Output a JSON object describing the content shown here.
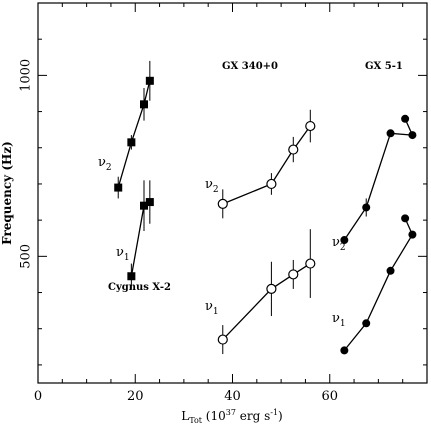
{
  "chart_data": {
    "type": "scatter",
    "title": "",
    "xlabel": {
      "main": "L",
      "sub": "Tot",
      "rest": " (10",
      "sup": "37",
      "rest2": " erg s",
      "sup2": "-1",
      "end": ")"
    },
    "ylabel": "Frequency (Hz)",
    "xlim": [
      0,
      80
    ],
    "ylim": [
      150,
      1200
    ],
    "xticks": [
      0,
      20,
      40,
      60
    ],
    "yticks": [
      500,
      1000
    ],
    "grid": false,
    "legend": "none",
    "sources": [
      {
        "name": "Cygnus X-2",
        "marker": "filled-square",
        "series": [
          {
            "label": {
              "greek": "ν",
              "sub": "2"
            },
            "points": [
              [
                16.5,
                690,
                30
              ],
              [
                19.2,
                815,
                20
              ],
              [
                21.8,
                920,
                45
              ],
              [
                23.0,
                985,
                55
              ]
            ]
          },
          {
            "label": {
              "greek": "ν",
              "sub": "1"
            },
            "points": [
              [
                19.2,
                445,
                35
              ],
              [
                21.8,
                640,
                70
              ],
              [
                23.0,
                650,
                60
              ]
            ]
          }
        ]
      },
      {
        "name": "GX 340+0",
        "marker": "open-circle",
        "series": [
          {
            "label": {
              "greek": "ν",
              "sub": "2"
            },
            "points": [
              [
                38.0,
                645,
                40
              ],
              [
                48.0,
                700,
                30
              ],
              [
                52.5,
                795,
                35
              ],
              [
                56.0,
                860,
                45
              ]
            ]
          },
          {
            "label": {
              "greek": "ν",
              "sub": "1"
            },
            "points": [
              [
                38.0,
                270,
                40
              ],
              [
                48.0,
                410,
                75
              ],
              [
                52.5,
                450,
                40
              ],
              [
                56.0,
                480,
                95
              ]
            ]
          }
        ]
      },
      {
        "name": "GX 5-1",
        "marker": "filled-circle",
        "series": [
          {
            "label": {
              "greek": "ν",
              "sub": "2"
            },
            "points": [
              [
                63.0,
                545,
                0
              ],
              [
                67.5,
                635,
                25
              ],
              [
                72.5,
                840,
                0
              ],
              [
                77.0,
                835,
                0
              ]
            ],
            "extra": [
              75.5,
              880
            ]
          },
          {
            "label": {
              "greek": "ν",
              "sub": "1"
            },
            "points": [
              [
                63.0,
                240,
                0
              ],
              [
                67.5,
                315,
                0
              ],
              [
                72.5,
                460,
                0
              ],
              [
                77.0,
                560,
                0
              ]
            ],
            "extra": [
              75.5,
              605
            ]
          }
        ]
      }
    ]
  }
}
